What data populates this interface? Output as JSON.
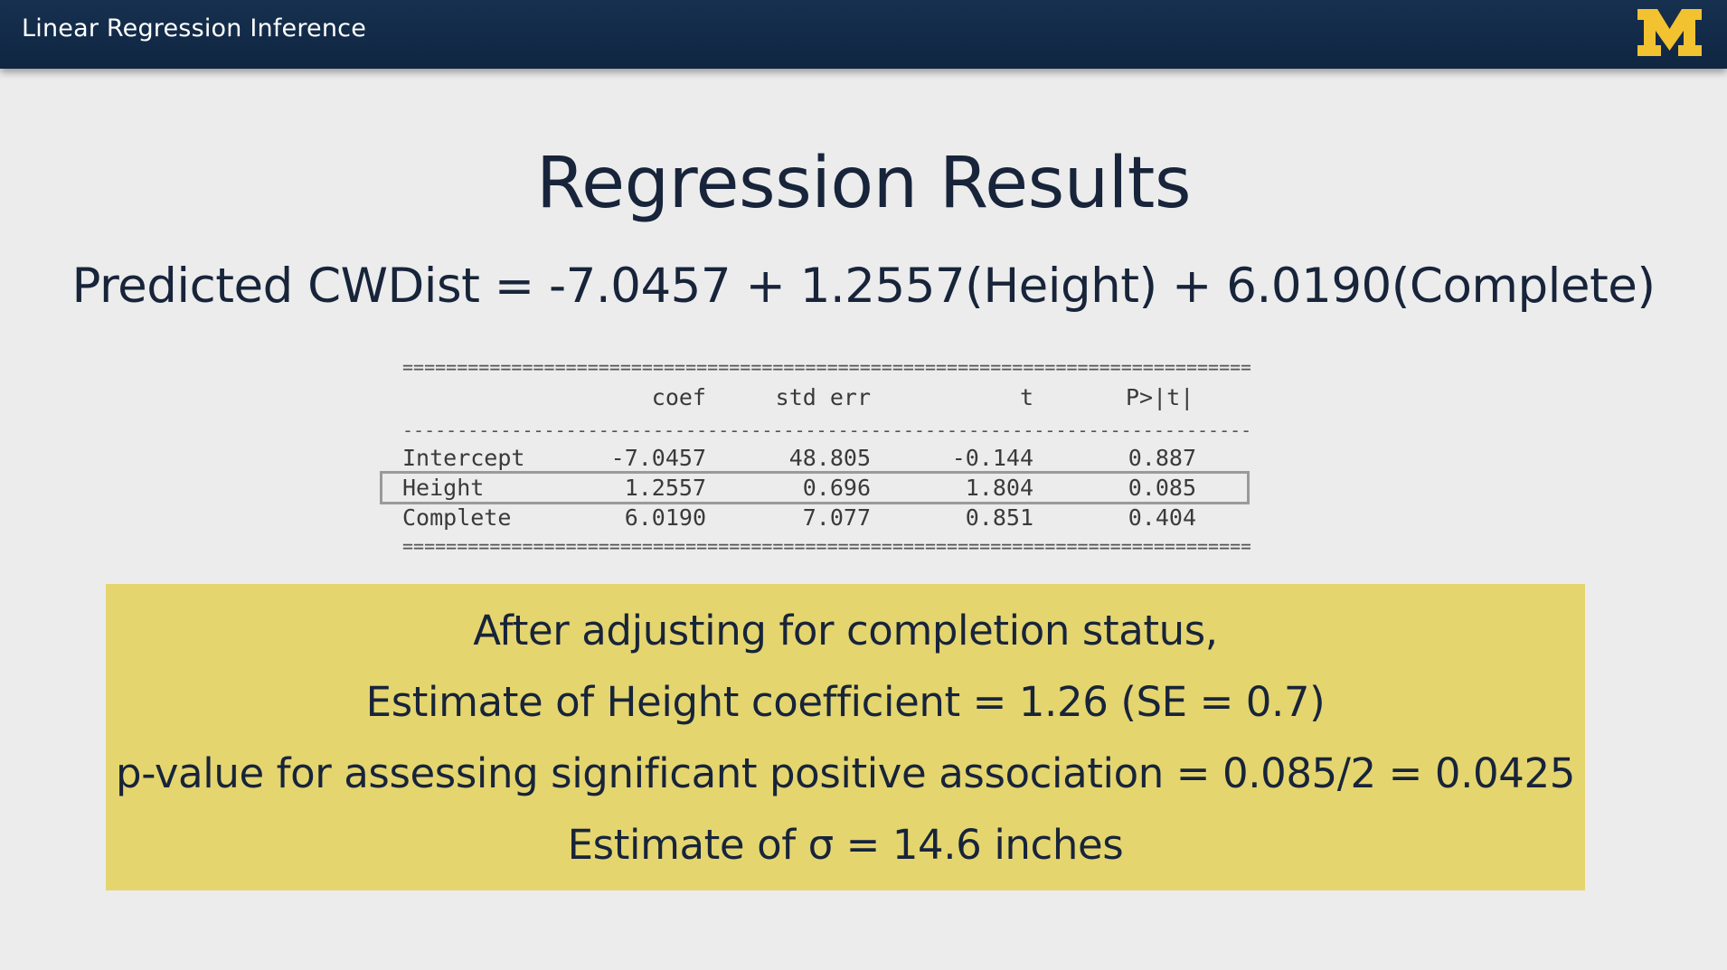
{
  "header": {
    "course_title": "Linear Regression Inference",
    "logo_text": "M"
  },
  "slide": {
    "title": "Regression Results",
    "equation": "Predicted CWDist = -7.0457 + 1.2557(Height) + 6.0190(Complete)"
  },
  "table": {
    "columns": [
      "coef",
      "std err",
      "t",
      "P>|t|"
    ],
    "rows": [
      {
        "name": "Intercept",
        "coef": "-7.0457",
        "std_err": "48.805",
        "t": "-0.144",
        "p": "0.887"
      },
      {
        "name": "Height",
        "coef": "1.2557",
        "std_err": "0.696",
        "t": "1.804",
        "p": "0.085"
      },
      {
        "name": "Complete",
        "coef": "6.0190",
        "std_err": "7.077",
        "t": "0.851",
        "p": "0.404"
      }
    ],
    "double_rule": "==================================================================================================",
    "single_rule": "--------------------------------------------------------------------------------------------------",
    "highlighted_row": "Height"
  },
  "summary": {
    "line1": "After adjusting for completion status,",
    "line2": "Estimate of Height coefficient = 1.26 (SE = 0.7)",
    "line3": "p-value for assessing significant positive association = 0.085/2 = 0.0425",
    "line4": "Estimate of σ = 14.6 inches",
    "background_color": "#e5d56f"
  },
  "colors": {
    "header_bg": "#12294a",
    "logo_maize": "#f2c230",
    "text_navy": "#17243a"
  }
}
